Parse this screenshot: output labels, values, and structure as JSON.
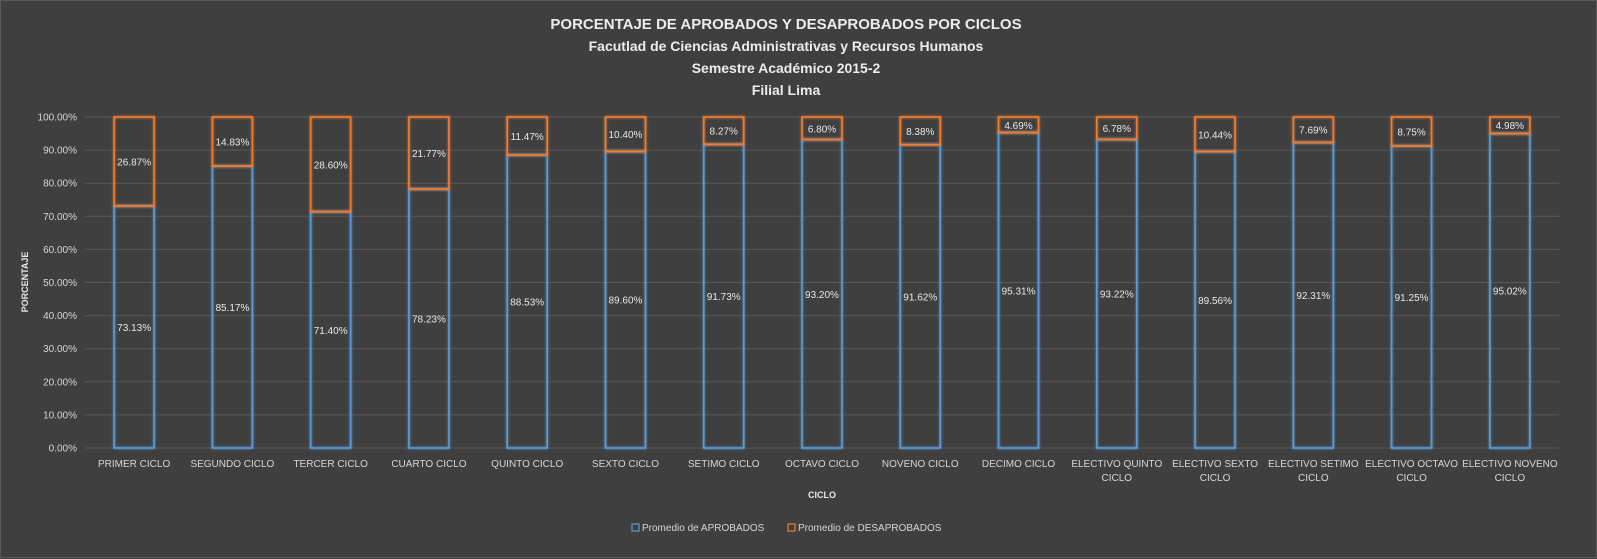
{
  "chart_data": {
    "type": "bar",
    "stacked": true,
    "title": [
      "PORCENTAJE DE APROBADOS Y DESAPROBADOS POR CICLOS",
      "Facutlad de Ciencias Administrativas y Recursos Humanos",
      "Semestre Académico 2015-2",
      "Filial Lima"
    ],
    "xlabel": "CICLO",
    "ylabel": "PORCENTAJE",
    "ylim": [
      0,
      100
    ],
    "yticks": [
      "0.00%",
      "10.00%",
      "20.00%",
      "30.00%",
      "40.00%",
      "50.00%",
      "60.00%",
      "70.00%",
      "80.00%",
      "90.00%",
      "100.00%"
    ],
    "grid": true,
    "legend_position": "bottom",
    "categories": [
      [
        "PRIMER CICLO"
      ],
      [
        "SEGUNDO CICLO"
      ],
      [
        "TERCER CICLO"
      ],
      [
        "CUARTO CICLO"
      ],
      [
        "QUINTO CICLO"
      ],
      [
        "SEXTO CICLO"
      ],
      [
        "SETIMO CICLO"
      ],
      [
        "OCTAVO CICLO"
      ],
      [
        "NOVENO CICLO"
      ],
      [
        "DECIMO CICLO"
      ],
      [
        "ELECTIVO QUINTO",
        "CICLO"
      ],
      [
        "ELECTIVO SEXTO",
        "CICLO"
      ],
      [
        "ELECTIVO SETIMO",
        "CICLO"
      ],
      [
        "ELECTIVO OCTAVO",
        "CICLO"
      ],
      [
        "ELECTIVO NOVENO",
        "CICLO"
      ]
    ],
    "series": [
      {
        "name": "Promedio de APROBADOS",
        "color": "#5b9bd5",
        "values": [
          73.13,
          85.17,
          71.4,
          78.23,
          88.53,
          89.6,
          91.73,
          93.2,
          91.62,
          95.31,
          93.22,
          89.56,
          92.31,
          91.25,
          95.02
        ],
        "labels": [
          "73.13%",
          "85.17%",
          "71.40%",
          "78.23%",
          "88.53%",
          "89.60%",
          "91.73%",
          "93.20%",
          "91.62%",
          "95.31%",
          "93.22%",
          "89.56%",
          "92.31%",
          "91.25%",
          "95.02%"
        ]
      },
      {
        "name": "Promedio de DESAPROBADOS",
        "color": "#ed7d31",
        "values": [
          26.87,
          14.83,
          28.6,
          21.77,
          11.47,
          10.4,
          8.27,
          6.8,
          8.38,
          4.69,
          6.78,
          10.44,
          7.69,
          8.75,
          4.98
        ],
        "labels": [
          "26.87%",
          "14.83%",
          "28.60%",
          "21.77%",
          "11.47%",
          "10.40%",
          "8.27%",
          "6.80%",
          "8.38%",
          "4.69%",
          "6.78%",
          "10.44%",
          "7.69%",
          "8.75%",
          "4.98%"
        ]
      }
    ]
  }
}
